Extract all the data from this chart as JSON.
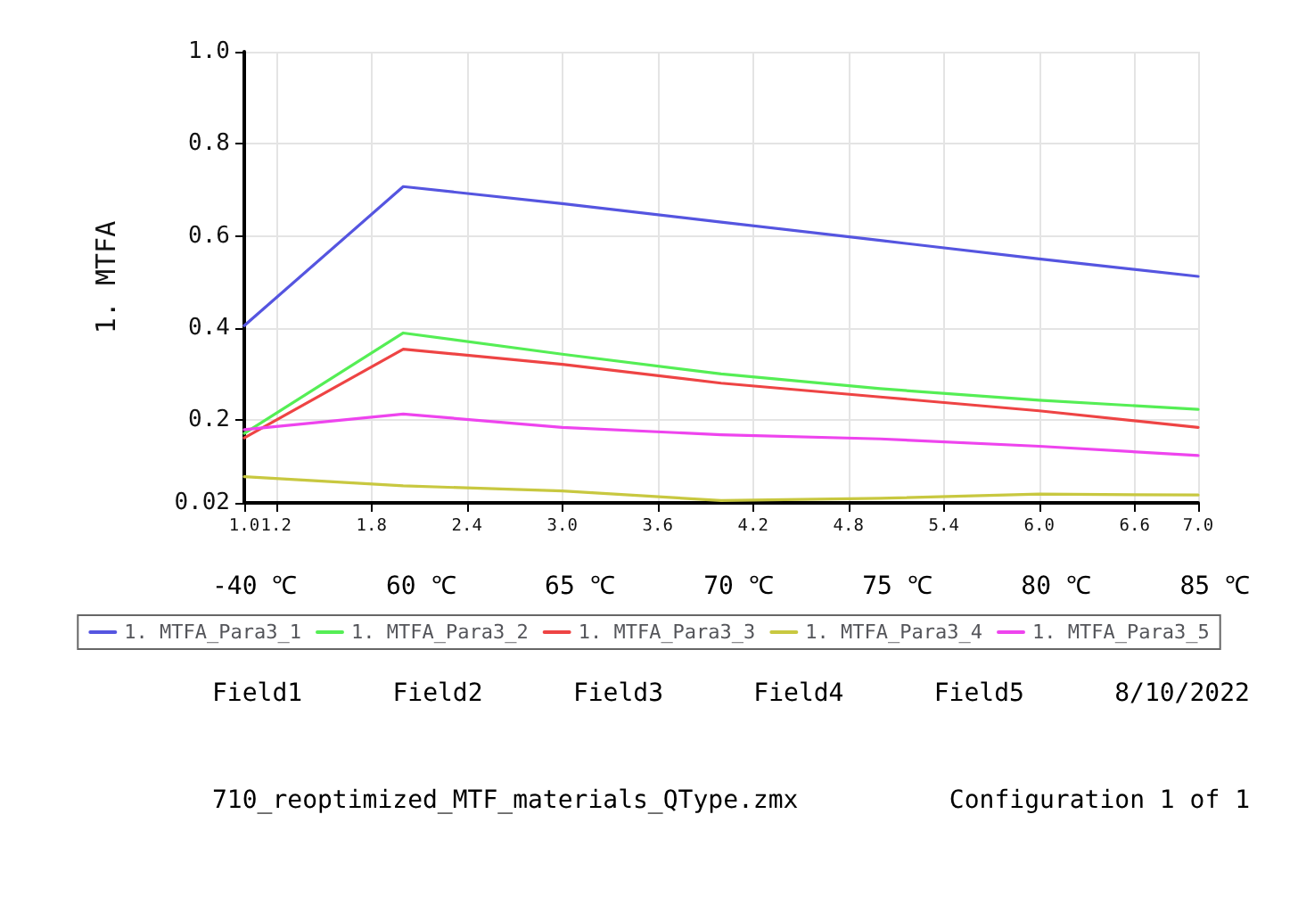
{
  "chart_data": {
    "type": "line",
    "ylabel": "1. MTFA",
    "x": [
      1,
      2,
      3,
      4,
      5,
      6,
      7
    ],
    "series": [
      {
        "name": "1. MTFA_Para3_1",
        "color": "#5555e0",
        "values": [
          0.405,
          0.707,
          0.67,
          0.63,
          0.59,
          0.55,
          0.512
        ]
      },
      {
        "name": "1. MTFA_Para3_2",
        "color": "#55ee55",
        "values": [
          0.171,
          0.389,
          0.343,
          0.3,
          0.268,
          0.243,
          0.223
        ]
      },
      {
        "name": "1. MTFA_Para3_3",
        "color": "#ee4444",
        "values": [
          0.161,
          0.354,
          0.321,
          0.28,
          0.25,
          0.22,
          0.184
        ]
      },
      {
        "name": "1. MTFA_Para3_4",
        "color": "#c8c840",
        "values": [
          0.077,
          0.057,
          0.046,
          0.025,
          0.03,
          0.039,
          0.037
        ]
      },
      {
        "name": "1. MTFA_Para3_5",
        "color": "#ee44ee",
        "values": [
          0.179,
          0.213,
          0.184,
          0.168,
          0.159,
          0.143,
          0.123
        ]
      }
    ],
    "xlim": [
      1,
      7
    ],
    "xticks": [
      {
        "value": 1,
        "label": "1.0"
      },
      1.2,
      1.8,
      2.4,
      {
        "value": 3,
        "label": "3.0"
      },
      3.6,
      4.2,
      4.8,
      5.4,
      {
        "value": 6,
        "label": "6.0"
      },
      6.6,
      {
        "value": 7,
        "label": "7.0"
      }
    ],
    "ylim": [
      0.02,
      1
    ],
    "yticks": [
      0.02,
      0.2,
      0.4,
      0.6,
      0.8,
      {
        "value": 1,
        "label": "1.0"
      }
    ],
    "grid": true,
    "legend": "bottom",
    "marker": "none",
    "line_style": "solid",
    "annotations": [
      "-40 ℃",
      "60 ℃",
      "65 ℃",
      "70 ℃",
      "75 ℃",
      "80 ℃",
      "85 ℃",
      "Field1",
      "Field2",
      "Field3",
      "Field4",
      "Field5",
      "8/10/2022",
      "710_reoptimized_MTF_materials_QType.zmx",
      "Configuration 1 of 1"
    ]
  }
}
